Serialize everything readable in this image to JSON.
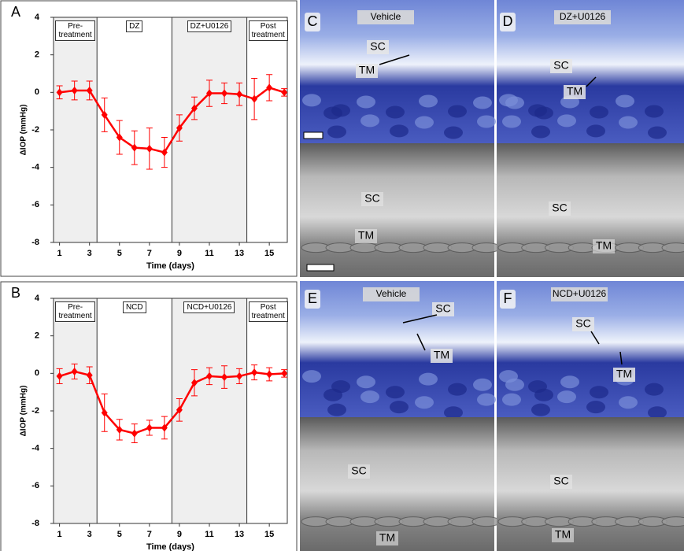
{
  "chart_data": [
    {
      "type": "line",
      "panel": "A",
      "x_label": "Time (days)",
      "y_label": "ΔIOP (mmHg)",
      "color": "#ff0000",
      "x": [
        1,
        2,
        3,
        4,
        5,
        6,
        7,
        8,
        9,
        10,
        11,
        12,
        13,
        14,
        15,
        16
      ],
      "series": [
        {
          "values": [
            0,
            0.1,
            0.1,
            -1.2,
            -2.4,
            -2.95,
            -3.0,
            -3.2,
            -1.9,
            -0.85,
            -0.05,
            -0.05,
            -0.1,
            -0.35,
            0.25,
            0
          ],
          "errors": [
            0.35,
            0.5,
            0.5,
            0.9,
            0.9,
            0.9,
            1.1,
            0.8,
            0.7,
            0.6,
            0.7,
            0.55,
            0.6,
            1.1,
            0.7,
            0.2
          ]
        }
      ],
      "phases": [
        {
          "label": "Pre-treatment",
          "start": 0.6,
          "end": 3.5,
          "shaded": true
        },
        {
          "label": "DZ",
          "start": 3.5,
          "end": 8.5,
          "shaded": false
        },
        {
          "label": "DZ+U0126",
          "start": 8.5,
          "end": 13.5,
          "shaded": true
        },
        {
          "label": "Post treatment",
          "start": 13.5,
          "end": 16.2,
          "shaded": false
        }
      ],
      "xlim": [
        0.6,
        16.2
      ],
      "xticks": [
        1,
        3,
        5,
        7,
        9,
        11,
        13,
        15
      ],
      "ylim": [
        -8,
        4
      ],
      "yticks": [
        -8,
        -6,
        -4,
        -2,
        0,
        2,
        4
      ]
    },
    {
      "type": "line",
      "panel": "B",
      "x_label": "Time (days)",
      "y_label": "ΔIOP (mmHg)",
      "color": "#ff0000",
      "x": [
        1,
        2,
        3,
        4,
        5,
        6,
        7,
        8,
        9,
        10,
        11,
        12,
        13,
        14,
        15,
        16
      ],
      "series": [
        {
          "values": [
            -0.15,
            0.1,
            -0.1,
            -2.1,
            -3.0,
            -3.2,
            -2.9,
            -2.9,
            -1.95,
            -0.5,
            -0.15,
            -0.2,
            -0.15,
            0.05,
            -0.05,
            0
          ],
          "errors": [
            0.4,
            0.4,
            0.45,
            1.0,
            0.55,
            0.5,
            0.4,
            0.6,
            0.6,
            0.7,
            0.45,
            0.6,
            0.4,
            0.4,
            0.35,
            0.2
          ]
        }
      ],
      "phases": [
        {
          "label": "Pre-treatment",
          "start": 0.6,
          "end": 3.5,
          "shaded": true
        },
        {
          "label": "NCD",
          "start": 3.5,
          "end": 8.5,
          "shaded": false
        },
        {
          "label": "NCD+U0126",
          "start": 8.5,
          "end": 13.5,
          "shaded": true
        },
        {
          "label": "Post treatment",
          "start": 13.5,
          "end": 16.2,
          "shaded": false
        }
      ],
      "xlim": [
        0.6,
        16.2
      ],
      "xticks": [
        1,
        3,
        5,
        7,
        9,
        11,
        13,
        15
      ],
      "ylim": [
        -8,
        4
      ],
      "yticks": [
        -8,
        -6,
        -4,
        -2,
        0,
        2,
        4
      ]
    }
  ],
  "panels": [
    {
      "letter": "C",
      "title": "Vehicle",
      "labels": [
        "SC",
        "TM",
        "SC",
        "TM"
      ]
    },
    {
      "letter": "D",
      "title": "DZ+U0126",
      "labels": [
        "SC",
        "TM",
        "SC",
        "TM"
      ]
    },
    {
      "letter": "E",
      "title": "Vehicle",
      "labels": [
        "SC",
        "TM",
        "SC",
        "TM"
      ]
    },
    {
      "letter": "F",
      "title": "NCD+U0126",
      "labels": [
        "SC",
        "TM",
        "SC",
        "TM"
      ]
    }
  ]
}
